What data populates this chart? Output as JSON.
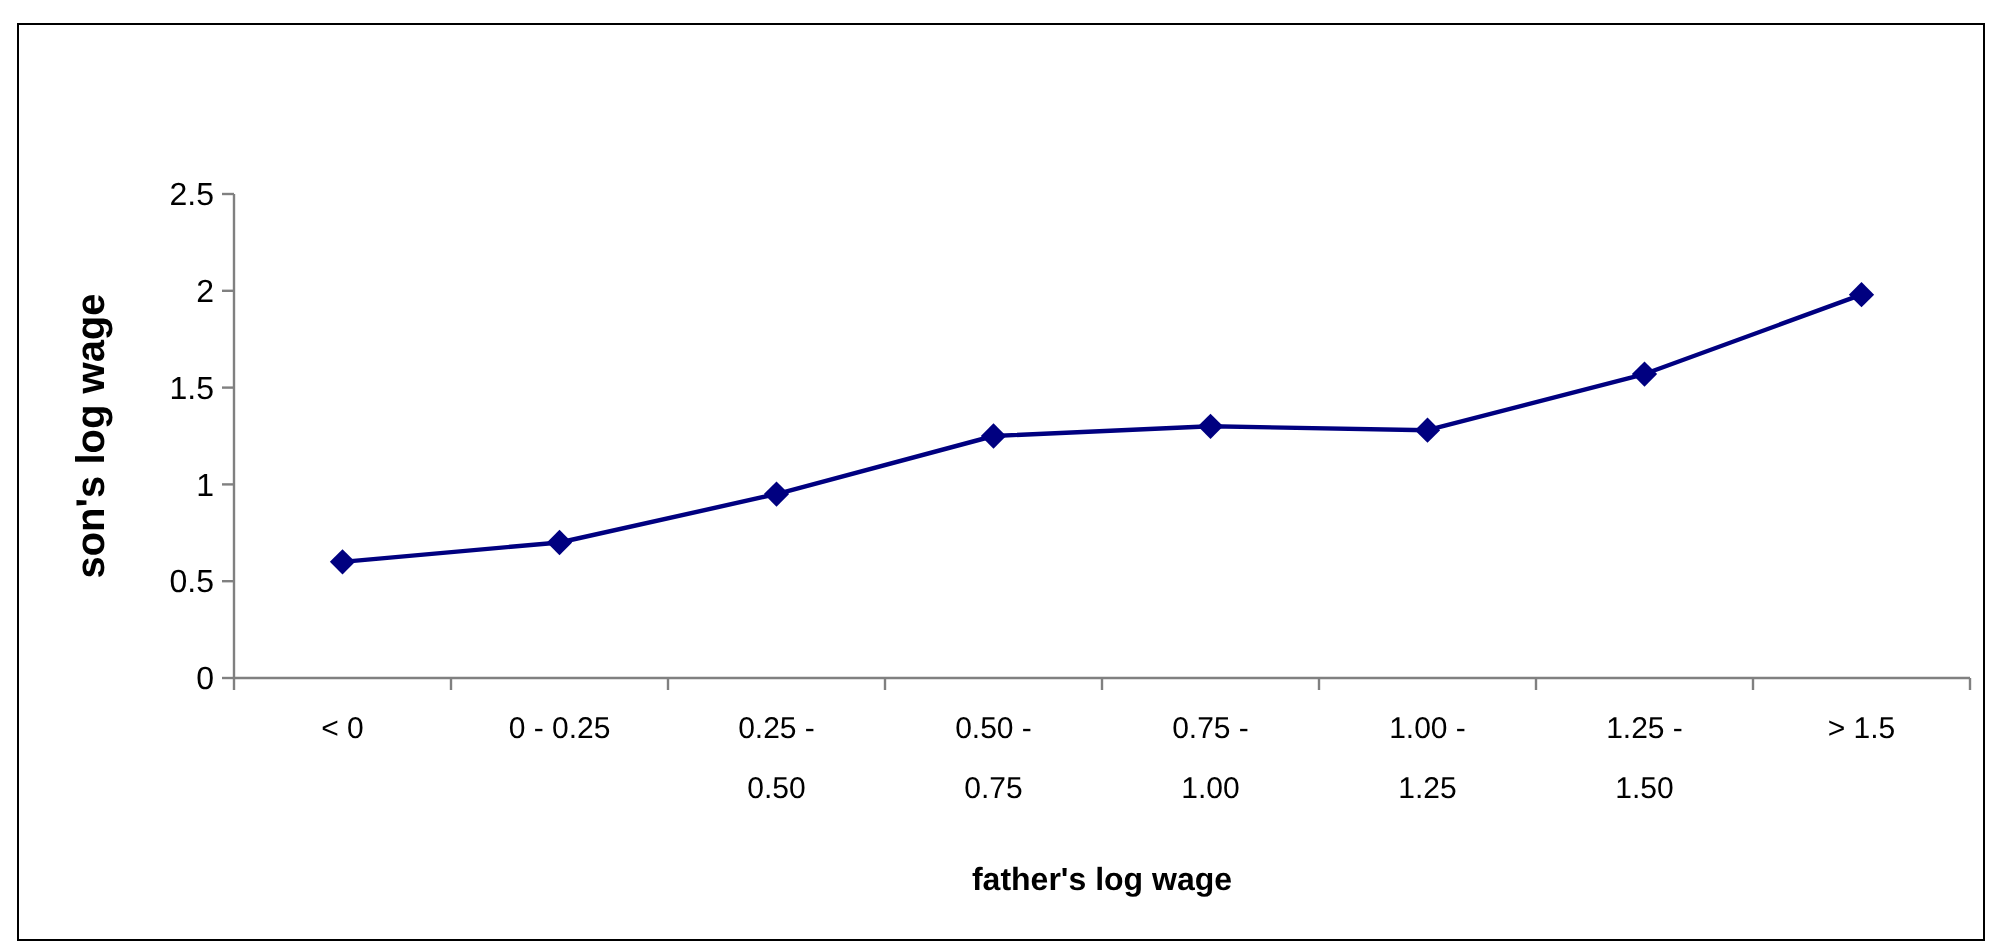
{
  "chart_data": {
    "type": "line",
    "xlabel": "father's log wage",
    "ylabel": "son's log wage",
    "categories": [
      "< 0",
      "0 - 0.25",
      "0.25 - 0.50",
      "0.50 - 0.75",
      "0.75 - 1.00",
      "1.00 - 1.25",
      "1.25 - 1.50",
      "> 1.5"
    ],
    "series": [
      {
        "color": "#000080",
        "values": [
          0.6,
          0.7,
          0.95,
          1.25,
          1.3,
          1.28,
          1.57,
          1.98
        ]
      }
    ],
    "ylim": [
      0,
      2.5
    ],
    "yticks": [
      0,
      0.5,
      1,
      1.5,
      2,
      2.5
    ],
    "grid": false,
    "marker": "diamond",
    "line_style": "solid"
  }
}
